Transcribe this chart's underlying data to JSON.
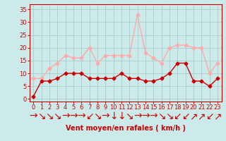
{
  "x": [
    0,
    1,
    2,
    3,
    4,
    5,
    6,
    7,
    8,
    9,
    10,
    11,
    12,
    13,
    14,
    15,
    16,
    17,
    18,
    19,
    20,
    21,
    22,
    23
  ],
  "mean_wind": [
    1,
    7,
    7,
    8,
    10,
    10,
    10,
    8,
    8,
    8,
    8,
    10,
    8,
    8,
    7,
    7,
    8,
    10,
    14,
    14,
    7,
    7,
    5,
    8
  ],
  "gust_wind": [
    8,
    8,
    12,
    14,
    17,
    16,
    16,
    20,
    14,
    17,
    17,
    17,
    17,
    33,
    18,
    16,
    14,
    20,
    21,
    21,
    20,
    20,
    10,
    14
  ],
  "mean_color": "#cc0000",
  "gust_color": "#ffaaaa",
  "bg_color": "#cceaea",
  "grid_color": "#aacccc",
  "axis_color": "#cc0000",
  "xlabel": "Vent moyen/en rafales ( km/h )",
  "xlabel_fontsize": 7,
  "yticks": [
    0,
    5,
    10,
    15,
    20,
    25,
    30,
    35
  ],
  "ylim": [
    -1,
    37
  ],
  "xlim": [
    -0.5,
    23.5
  ],
  "tick_fontsize": 6,
  "marker_size": 2.5,
  "line_width": 1.0,
  "arrows": [
    "→",
    "↘",
    "↘",
    "↘",
    "→",
    "→",
    "→",
    "↙",
    "↘",
    "→",
    "↓",
    "↓",
    "↘",
    "→",
    "→",
    "→",
    "↘",
    "↘",
    "↙",
    "↙",
    "↗",
    "↗",
    "↙",
    "↗"
  ]
}
